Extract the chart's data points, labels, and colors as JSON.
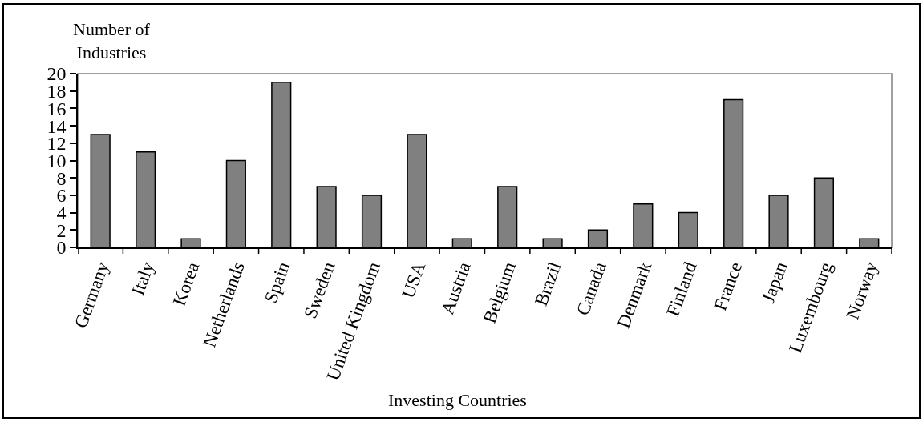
{
  "chart_data": {
    "type": "bar",
    "ylabel": "Number of\nIndustries",
    "xlabel": "Investing Countries",
    "categories": [
      "Germany",
      "Italy",
      "Korea",
      "Netherlands",
      "Spain",
      "Sweden",
      "United Kingdom",
      "USA",
      "Austria",
      "Belgium",
      "Brazil",
      "Canada",
      "Denmark",
      "Finland",
      "France",
      "Japan",
      "Luxembourg",
      "Norway"
    ],
    "values": [
      13,
      11,
      1,
      10,
      19,
      7,
      6,
      13,
      1,
      7,
      1,
      2,
      5,
      4,
      17,
      6,
      8,
      1
    ],
    "color": "#808080",
    "ylim": [
      0,
      20
    ],
    "yticks": [
      0,
      2,
      4,
      6,
      8,
      10,
      12,
      14,
      16,
      18,
      20
    ],
    "grid": false
  }
}
